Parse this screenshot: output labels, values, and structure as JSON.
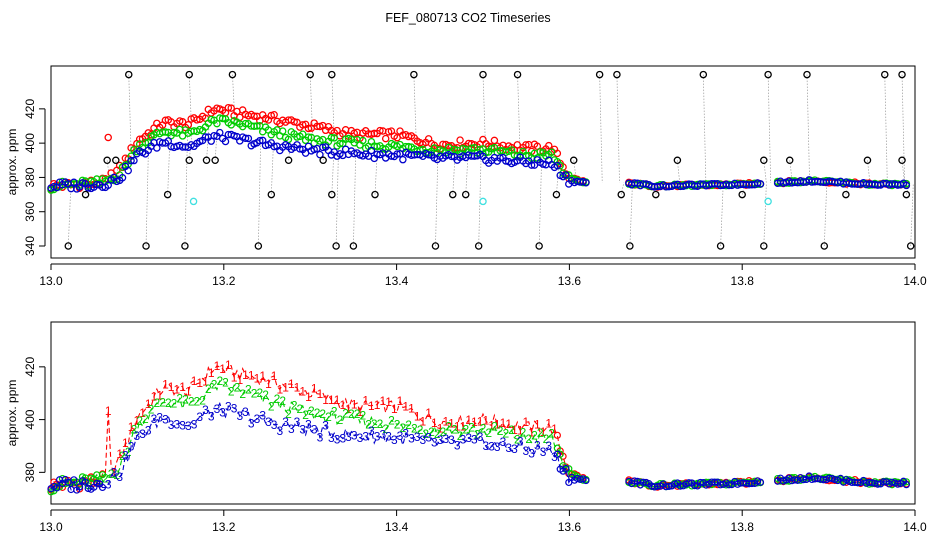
{
  "figure": {
    "title": "FEF_080713  CO2 Timeseries"
  },
  "chart_data": [
    {
      "type": "scatter",
      "title": "",
      "xlabel": "",
      "ylabel": "approx. ppm",
      "xlim": [
        13.0,
        14.0
      ],
      "ylim": [
        333,
        445
      ],
      "x_ticks": [
        "13.0",
        "13.2",
        "13.4",
        "13.6",
        "13.8",
        "14.0"
      ],
      "y_ticks": [
        "340",
        "360",
        "380",
        "400",
        "420"
      ],
      "series": [
        {
          "name": "1",
          "color": "#ff0000",
          "profile": [
            [
              13.0,
              375
            ],
            [
              13.06,
              377
            ],
            [
              13.08,
              385
            ],
            [
              13.1,
              401
            ],
            [
              13.13,
              412
            ],
            [
              13.16,
              411
            ],
            [
              13.19,
              420
            ],
            [
              13.22,
              417
            ],
            [
              13.25,
              415
            ],
            [
              13.3,
              410
            ],
            [
              13.35,
              405
            ],
            [
              13.4,
              405
            ],
            [
              13.45,
              399
            ],
            [
              13.5,
              400
            ],
            [
              13.55,
              397
            ],
            [
              13.58,
              397
            ],
            [
              13.6,
              380
            ],
            [
              13.62,
              377
            ],
            [
              13.66,
              377
            ],
            [
              13.7,
              375
            ],
            [
              13.8,
              376
            ],
            [
              13.88,
              378
            ],
            [
              13.95,
              376
            ],
            [
              13.99,
              376
            ]
          ]
        },
        {
          "name": "2",
          "color": "#00cc00",
          "profile": [
            [
              13.0,
              375
            ],
            [
              13.06,
              377
            ],
            [
              13.08,
              382
            ],
            [
              13.1,
              398
            ],
            [
              13.13,
              407
            ],
            [
              13.16,
              405
            ],
            [
              13.19,
              413
            ],
            [
              13.22,
              411
            ],
            [
              13.25,
              407
            ],
            [
              13.3,
              402
            ],
            [
              13.35,
              400
            ],
            [
              13.4,
              398
            ],
            [
              13.45,
              396
            ],
            [
              13.5,
              396
            ],
            [
              13.55,
              393
            ],
            [
              13.58,
              393
            ],
            [
              13.6,
              379
            ],
            [
              13.62,
              377
            ],
            [
              13.66,
              377
            ],
            [
              13.7,
              375
            ],
            [
              13.8,
              376
            ],
            [
              13.88,
              378
            ],
            [
              13.95,
              376
            ],
            [
              13.99,
              376
            ]
          ]
        },
        {
          "name": "3",
          "color": "#0000cc",
          "profile": [
            [
              13.0,
              375
            ],
            [
              13.06,
              376
            ],
            [
              13.08,
              380
            ],
            [
              13.1,
              393
            ],
            [
              13.13,
              401
            ],
            [
              13.16,
              398
            ],
            [
              13.19,
              404
            ],
            [
              13.22,
              402
            ],
            [
              13.25,
              399
            ],
            [
              13.3,
              396
            ],
            [
              13.35,
              394
            ],
            [
              13.4,
              393
            ],
            [
              13.45,
              391
            ],
            [
              13.5,
              391
            ],
            [
              13.55,
              389
            ],
            [
              13.58,
              388
            ],
            [
              13.6,
              378
            ],
            [
              13.62,
              377
            ],
            [
              13.66,
              377
            ],
            [
              13.7,
              375
            ],
            [
              13.8,
              376
            ],
            [
              13.88,
              378
            ],
            [
              13.95,
              376
            ],
            [
              13.99,
              376
            ]
          ]
        },
        {
          "name": "outliers",
          "color": "#000000",
          "values": [
            [
              13.02,
              340
            ],
            [
              13.04,
              370
            ],
            [
              13.065,
              390
            ],
            [
              13.075,
              390
            ],
            [
              13.09,
              440
            ],
            [
              13.11,
              340
            ],
            [
              13.135,
              370
            ],
            [
              13.155,
              340
            ],
            [
              13.16,
              390
            ],
            [
              13.16,
              440
            ],
            [
              13.18,
              390
            ],
            [
              13.19,
              390
            ],
            [
              13.21,
              440
            ],
            [
              13.24,
              340
            ],
            [
              13.255,
              370
            ],
            [
              13.275,
              390
            ],
            [
              13.3,
              440
            ],
            [
              13.315,
              390
            ],
            [
              13.325,
              440
            ],
            [
              13.325,
              370
            ],
            [
              13.33,
              340
            ],
            [
              13.35,
              340
            ],
            [
              13.375,
              370
            ],
            [
              13.42,
              440
            ],
            [
              13.445,
              340
            ],
            [
              13.465,
              370
            ],
            [
              13.48,
              370
            ],
            [
              13.495,
              340
            ],
            [
              13.5,
              440
            ],
            [
              13.54,
              440
            ],
            [
              13.565,
              340
            ],
            [
              13.585,
              370
            ],
            [
              13.605,
              390
            ],
            [
              13.635,
              440
            ],
            [
              13.655,
              440
            ],
            [
              13.66,
              370
            ],
            [
              13.67,
              340
            ],
            [
              13.7,
              370
            ],
            [
              13.725,
              390
            ],
            [
              13.755,
              440
            ],
            [
              13.775,
              340
            ],
            [
              13.8,
              370
            ],
            [
              13.825,
              340
            ],
            [
              13.825,
              390
            ],
            [
              13.83,
              440
            ],
            [
              13.855,
              390
            ],
            [
              13.875,
              440
            ],
            [
              13.895,
              340
            ],
            [
              13.92,
              370
            ],
            [
              13.945,
              390
            ],
            [
              13.965,
              440
            ],
            [
              13.985,
              440
            ],
            [
              13.985,
              390
            ],
            [
              13.99,
              370
            ],
            [
              13.995,
              340
            ]
          ]
        },
        {
          "name": "cyan",
          "color": "#40e0e0",
          "values": [
            [
              13.165,
              366
            ],
            [
              13.5,
              366
            ],
            [
              13.83,
              366
            ]
          ]
        }
      ]
    },
    {
      "type": "line",
      "title": "",
      "xlabel": "",
      "ylabel": "approx. ppm",
      "xlim": [
        13.0,
        14.0
      ],
      "ylim": [
        368,
        437
      ],
      "x_ticks": [
        "13.0",
        "13.2",
        "13.4",
        "13.6",
        "13.8",
        "14.0"
      ],
      "y_ticks": [
        "380",
        "400",
        "420"
      ],
      "series": [
        {
          "name": "1",
          "color": "#ff0000"
        },
        {
          "name": "2",
          "color": "#00cc00"
        },
        {
          "name": "3",
          "color": "#0000cc"
        }
      ]
    }
  ]
}
